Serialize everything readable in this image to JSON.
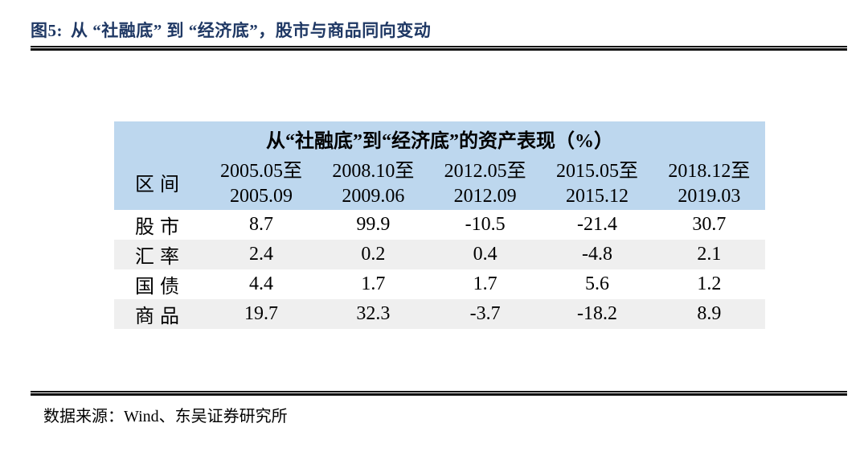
{
  "figure": {
    "label": "图5:",
    "title": "从 “社融底” 到 “经济底”，股市与商品同向变动"
  },
  "table": {
    "title": "从“社融底”到“经济底”的资产表现（%）",
    "corner_label": "区间",
    "periods": [
      {
        "from": "2005.05至",
        "to": "2005.09"
      },
      {
        "from": "2008.10至",
        "to": "2009.06"
      },
      {
        "from": "2012.05至",
        "to": "2012.09"
      },
      {
        "from": "2015.05至",
        "to": "2015.12"
      },
      {
        "from": "2018.12至",
        "to": "2019.03"
      }
    ],
    "rows": [
      {
        "label": "股市",
        "values": [
          "8.7",
          "99.9",
          "-10.5",
          "-21.4",
          "30.7"
        ]
      },
      {
        "label": "汇率",
        "values": [
          "2.4",
          "0.2",
          "0.4",
          "-4.8",
          "2.1"
        ]
      },
      {
        "label": "国债",
        "values": [
          "4.4",
          "1.7",
          "1.7",
          "5.6",
          "1.2"
        ]
      },
      {
        "label": "商品",
        "values": [
          "19.7",
          "32.3",
          "-3.7",
          "-18.2",
          "8.9"
        ]
      }
    ]
  },
  "footer": {
    "source": "数据来源：Wind、东吴证券研究所"
  },
  "colors": {
    "figure_title_navy": "#1F3864",
    "table_header_blue": "#BDD7EE",
    "row_alt_gray": "#EFEFEF",
    "rule_black": "#0A0A0A"
  },
  "chart_data": {
    "type": "table",
    "title": "从“社融底”到“经济底”的资产表现（%）",
    "row_header": "区间",
    "columns": [
      "2005.05至2005.09",
      "2008.10至2009.06",
      "2012.05至2012.09",
      "2015.05至2015.12",
      "2018.12至2019.03"
    ],
    "rows": [
      {
        "name": "股市",
        "values": [
          8.7,
          99.9,
          -10.5,
          -21.4,
          30.7
        ]
      },
      {
        "name": "汇率",
        "values": [
          2.4,
          0.2,
          0.4,
          -4.8,
          2.1
        ]
      },
      {
        "name": "国债",
        "values": [
          4.4,
          1.7,
          1.7,
          5.6,
          1.2
        ]
      },
      {
        "name": "商品",
        "values": [
          19.7,
          32.3,
          -3.7,
          -18.2,
          8.9
        ]
      }
    ]
  }
}
